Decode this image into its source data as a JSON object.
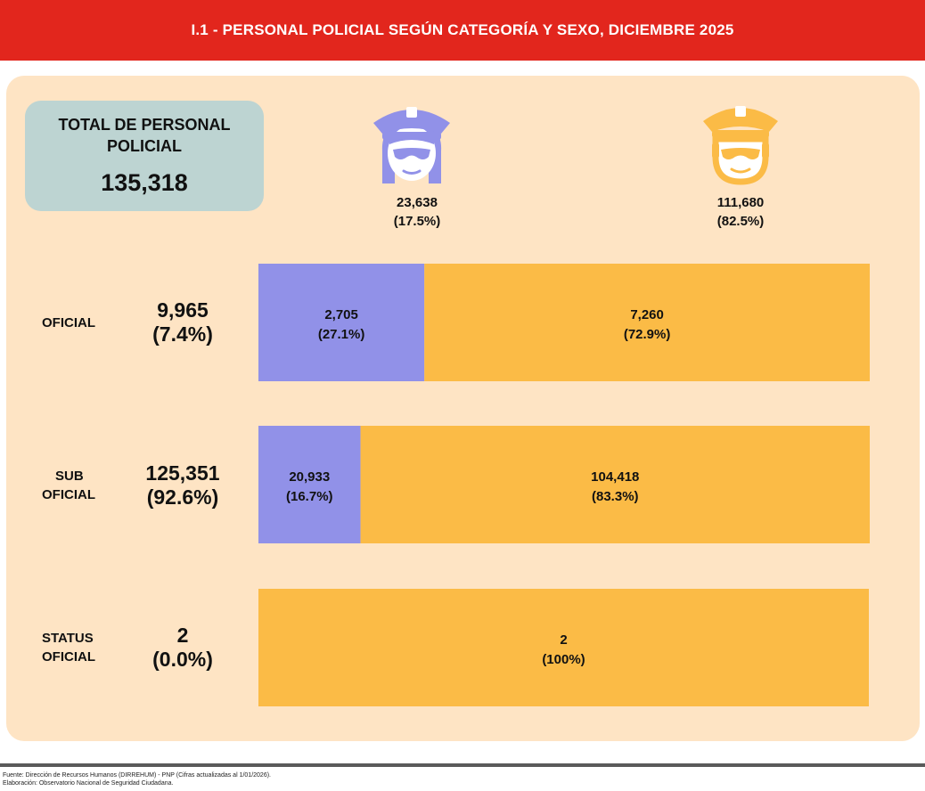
{
  "header": {
    "title": "I.1 - PERSONAL POLICIAL SEGÚN CATEGORÍA Y SEXO, DICIEMBRE 2025"
  },
  "total": {
    "label": "TOTAL DE PERSONAL POLICIAL",
    "value": "135,318"
  },
  "genders": {
    "female": {
      "icon": "policewoman-icon",
      "value": "23,638",
      "percent": "(17.5%)",
      "color": "#9191e8"
    },
    "male": {
      "icon": "policeman-icon",
      "value": "111,680",
      "percent": "(82.5%)",
      "color": "#fbbb46"
    }
  },
  "categories": [
    {
      "label_lines": [
        "OFICIAL"
      ],
      "total": "9,965",
      "percent": "(7.4%)"
    },
    {
      "label_lines": [
        "SUB",
        "OFICIAL"
      ],
      "total": "125,351",
      "percent": "(92.6%)"
    },
    {
      "label_lines": [
        "STATUS",
        "OFICIAL"
      ],
      "total": "2",
      "percent": "(0.0%)"
    }
  ],
  "chart_data": {
    "type": "bar",
    "orientation": "horizontal",
    "stacked": true,
    "normalized": true,
    "title": "I.1 - PERSONAL POLICIAL SEGÚN CATEGORÍA Y SEXO, DICIEMBRE 2025",
    "categories": [
      "OFICIAL",
      "SUB OFICIAL",
      "STATUS OFICIAL"
    ],
    "series": [
      {
        "name": "female",
        "color": "#9191e8",
        "values": [
          2705,
          20933,
          0
        ],
        "labels": [
          "2,705",
          "20,933",
          ""
        ],
        "pct_labels": [
          "(27.1%)",
          "(16.7%)",
          ""
        ]
      },
      {
        "name": "male",
        "color": "#fbbb46",
        "values": [
          7260,
          104418,
          2
        ],
        "labels": [
          "7,260",
          "104,418",
          "2"
        ],
        "pct_labels": [
          "(72.9%)",
          "(83.3%)",
          "(100%)"
        ]
      }
    ],
    "legend": "icons above bars",
    "grid": false
  },
  "footer": {
    "source": "Fuente: Dirección de Recursos Humanos (DIRREHUM) - PNP (Cifras actualizadas al 1/01/2026).",
    "elaboration": "Elaboración: Observatorio Nacional de Seguridad Ciudadana."
  }
}
